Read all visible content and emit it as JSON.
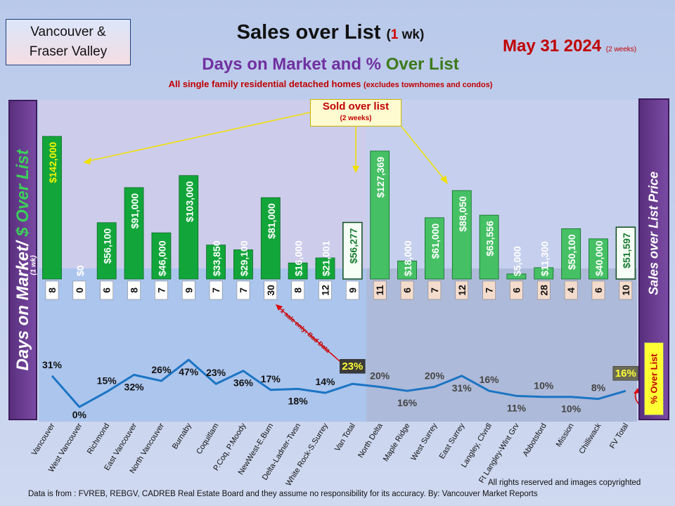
{
  "header": {
    "region_line1": "Vancouver &",
    "region_line2": "Fraser Valley",
    "title_main": "Sales over List",
    "title_paren_open": "(",
    "title_paren_num": "1",
    "title_paren_rest": " wk)",
    "subtitle_a": "Days on Market and % ",
    "subtitle_b": "Over List",
    "description": "All single family residential detached homes",
    "description_small": "(excludes townhomes and condos)",
    "date": "May 31  2024",
    "date_small": "(2 weeks)"
  },
  "annotations": {
    "sold_over_list": "Sold over list",
    "sold_over_list_sub": "(2 weeks)",
    "bad_data": "1 sale only: Bad Data"
  },
  "side_labels": {
    "left_a": "Days on Market/ ",
    "left_b": "$ Over List",
    "left_small": "(1 wk)",
    "right": "Sales over List Price",
    "pct_box": "% Over List"
  },
  "footer": {
    "note": "Data is from : FVREB, REBGV, CADREB Real Estate Board and they assume no responsibility for its accuracy. By: Vancouver  Market Reports",
    "rights": "All rights reserved and  images copyrighted"
  },
  "colors": {
    "van_bar": "#12a63a",
    "fv_bar": "#46c064",
    "line": "#1b74c4",
    "days_box": "#ffffff",
    "fv_days_box": "#f4dccd"
  },
  "chart_data": {
    "type": "bar+line",
    "categories": [
      "Vancouver",
      "West Vancouver",
      "Richmond",
      "East Vancouver",
      "North Vancouver",
      "Burnaby",
      "Coquitlam",
      "P.Coq, P.Moody",
      "NewWest-E.Burn",
      "Delta-Ladner-Twsn",
      "White Rock-S.Surrey",
      "Van Total",
      "North Delta",
      "Maple Ridge",
      "West Surrey",
      "East Surrey",
      "Langley, Clvrdl",
      "Ft Langley-Wlnt Grv",
      "Abbotsford",
      "Mission",
      "Chilliwack",
      "FV Total"
    ],
    "series": [
      {
        "name": "$ Over List",
        "values": [
          142000,
          0,
          56100,
          91000,
          46000,
          103000,
          33850,
          29100,
          81000,
          16000,
          21001,
          56277,
          127369,
          18000,
          61000,
          88050,
          63556,
          5000,
          11300,
          50100,
          40000,
          51597
        ],
        "labels": [
          "$142,000",
          "$0",
          "$56,100",
          "$91,000",
          "$46,000",
          "$103,000",
          "$33,850",
          "$29,100",
          "$81,000",
          "$16,000",
          "$21,001",
          "$56,277",
          "$127,369",
          "$18,000",
          "$61,000",
          "$88,050",
          "$63,556",
          "$5,000",
          "$11,300",
          "$50,100",
          "$40,000",
          "$51,597"
        ]
      },
      {
        "name": "Days on Market",
        "values": [
          8,
          0,
          6,
          8,
          7,
          9,
          7,
          7,
          30,
          8,
          12,
          9,
          11,
          6,
          7,
          12,
          7,
          6,
          28,
          4,
          6,
          10
        ]
      },
      {
        "name": "% Over List",
        "values": [
          31,
          0,
          15,
          32,
          26,
          47,
          23,
          36,
          17,
          18,
          14,
          23,
          20,
          16,
          20,
          31,
          16,
          11,
          10,
          10,
          8,
          16
        ],
        "labels": [
          "31%",
          "0%",
          "15%",
          "32%",
          "26%",
          "47%",
          "23%",
          "36%",
          "17%",
          "18%",
          "14%",
          "23%",
          "20%",
          "16%",
          "20%",
          "31%",
          "16%",
          "11%",
          "10%",
          "10%",
          "8%",
          "16%"
        ]
      }
    ],
    "ylim_dollars": [
      0,
      142000
    ],
    "ylim_percent": [
      0,
      47
    ]
  }
}
